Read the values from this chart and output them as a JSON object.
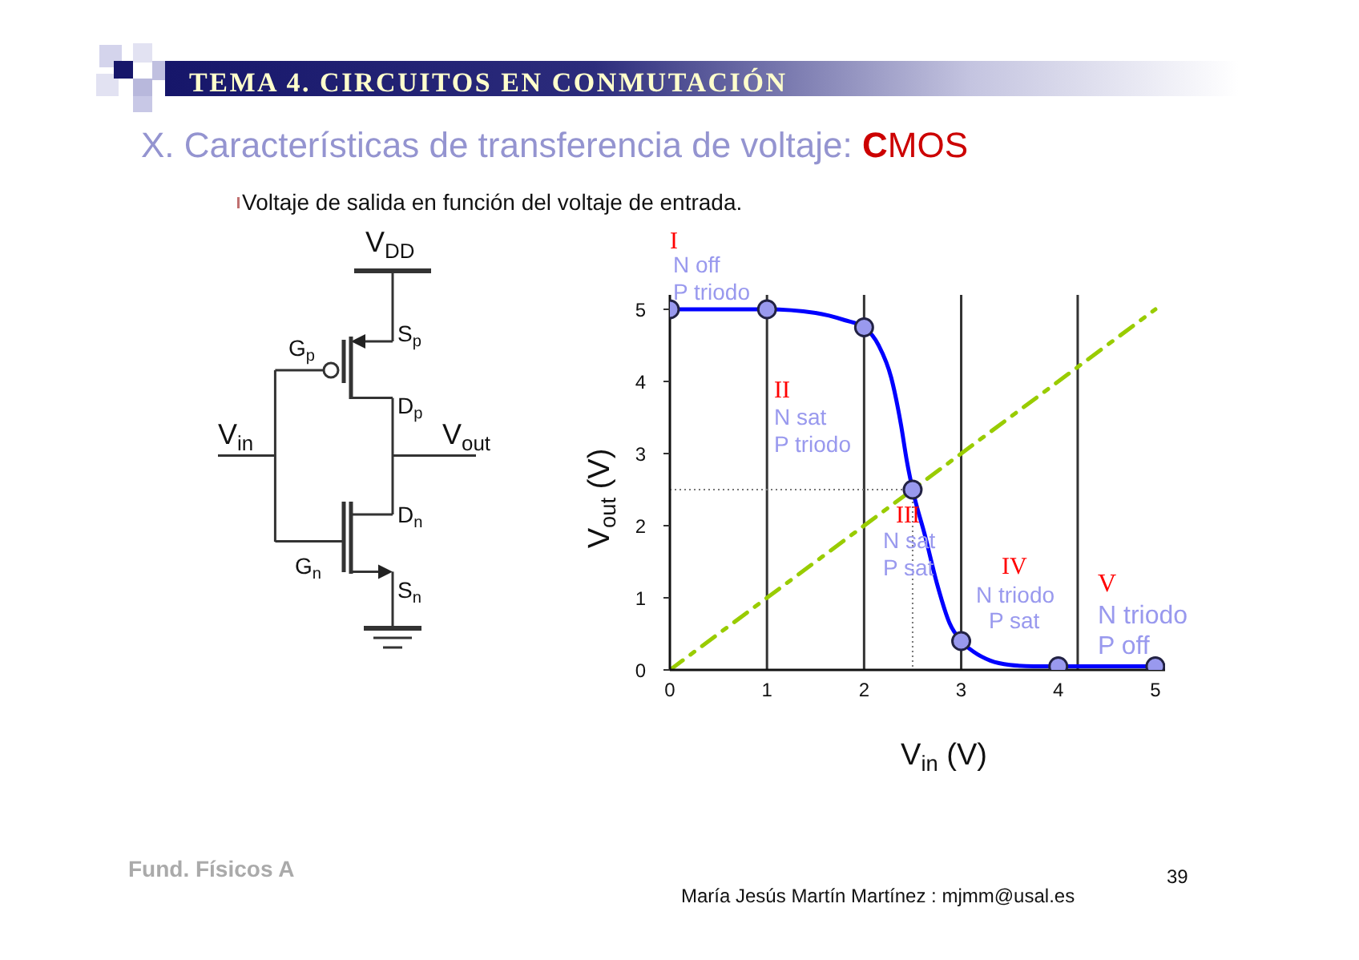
{
  "chart_data": {
    "type": "line",
    "title": "X. Características de transferencia de voltaje: CMOS",
    "subtitle": "Voltaje de salida en función del voltaje de entrada.",
    "xlabel": "V$_{in}$ (V)",
    "ylabel": "V$_{out}$ (V)",
    "xlim": [
      0,
      5.1
    ],
    "ylim": [
      0,
      5.2
    ],
    "xticks": [
      0,
      1,
      2,
      3,
      4,
      5
    ],
    "yticks": [
      0,
      1,
      2,
      3,
      4,
      5
    ],
    "series": [
      {
        "type": "line",
        "color": "#99cc00",
        "x": [
          0,
          5
        ],
        "values": [
          0,
          5
        ],
        "line_style": "dashed"
      },
      {
        "type": "line",
        "color": "#777777",
        "x": [
          0,
          2.5,
          2.5
        ],
        "values": [
          2.5,
          2.5,
          0
        ],
        "line_style": "dotted"
      },
      {
        "type": "line",
        "color": "#0000ff",
        "x": [
          0,
          1,
          1.5,
          1.8,
          2,
          2.15,
          2.28,
          2.38,
          2.44,
          2.5,
          2.63,
          2.75,
          2.88,
          3,
          3.13,
          3.3,
          3.5,
          3.75,
          4,
          4.5,
          5
        ],
        "values": [
          5,
          5,
          4.95,
          4.85,
          4.75,
          4.5,
          4.05,
          3.4,
          2.9,
          2.5,
          1.85,
          1.2,
          0.65,
          0.4,
          0.25,
          0.13,
          0.07,
          0.05,
          0.05,
          0.05,
          0.05
        ]
      },
      {
        "type": "scatter",
        "color": "#9999ee",
        "x": [
          0,
          1,
          2,
          2.5,
          3,
          4,
          5
        ],
        "values": [
          5,
          5,
          4.75,
          2.5,
          0.4,
          0.05,
          0.05
        ],
        "marker": "circle"
      }
    ],
    "ref_lines": [
      {
        "axis": "x",
        "value": 1,
        "color": "#333333"
      },
      {
        "axis": "x",
        "value": 2,
        "color": "#333333"
      },
      {
        "axis": "x",
        "value": 3,
        "color": "#333333"
      },
      {
        "axis": "x",
        "value": 4.2,
        "color": "#333333"
      }
    ],
    "annotations": [
      "TEMA 4. CIRCUITOS EN CONMUTACIÓN",
      "Fund. Físicos A",
      "María Jesús Martín Martínez : mjmm@usal.es",
      "39",
      "V$_{DD}$",
      "S$_{p}$",
      "G$_{p}$",
      "D$_{p}$",
      "V$_{in}$",
      "V$_{out}$",
      "D$_{n}$",
      "G$_{n}$",
      "S$_{n}$",
      "I",
      "N off",
      "P triodo",
      "II",
      "N sat",
      "P triodo",
      "III",
      "N sat",
      "P sat",
      "IV",
      "N triodo",
      "P sat",
      "V",
      "N triodo",
      "P off"
    ]
  }
}
